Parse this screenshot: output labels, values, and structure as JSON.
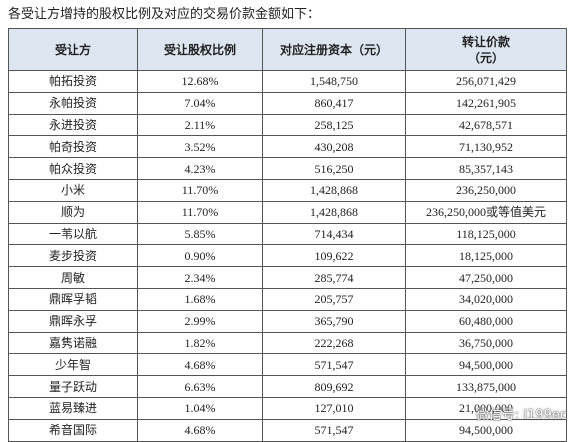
{
  "intro": "各受让方增持的股权比例及对应的交易价款金额如下：",
  "table": {
    "header": [
      "受让方",
      "受让股权比例",
      "对应注册资本（元）",
      [
        "转让价款",
        "（元）"
      ]
    ],
    "rows": [
      [
        "帕拓投资",
        "12.68%",
        "1,548,750",
        "256,071,429"
      ],
      [
        "永帕投资",
        "7.04%",
        "860,417",
        "142,261,905"
      ],
      [
        "永进投资",
        "2.11%",
        "258,125",
        "42,678,571"
      ],
      [
        "帕奇投资",
        "3.52%",
        "430,208",
        "71,130,952"
      ],
      [
        "帕众投资",
        "4.23%",
        "516,250",
        "85,357,143"
      ],
      [
        "小米",
        "11.70%",
        "1,428,868",
        "236,250,000"
      ],
      [
        "顺为",
        "11.70%",
        "1,428,868",
        "236,250,000或等值美元"
      ],
      [
        "一苇以航",
        "5.85%",
        "714,434",
        "118,125,000"
      ],
      [
        "麦步投资",
        "0.90%",
        "109,622",
        "18,125,000"
      ],
      [
        "周敏",
        "2.34%",
        "285,774",
        "47,250,000"
      ],
      [
        "鼎晖孚韬",
        "1.68%",
        "205,757",
        "34,020,000"
      ],
      [
        "鼎晖永孚",
        "2.99%",
        "365,790",
        "60,480,000"
      ],
      [
        "嘉隽诺融",
        "1.82%",
        "222,268",
        "36,750,000"
      ],
      [
        "少年智",
        "4.68%",
        "571,547",
        "94,500,000"
      ],
      [
        "量子跃动",
        "6.63%",
        "809,692",
        "133,875,000"
      ],
      [
        "蓝易臻进",
        "1.04%",
        "127,010",
        "21,000,000"
      ],
      [
        "希音国际",
        "4.68%",
        "571,547",
        "94,500,000"
      ]
    ]
  },
  "watermark": "微信号: i199ec"
}
